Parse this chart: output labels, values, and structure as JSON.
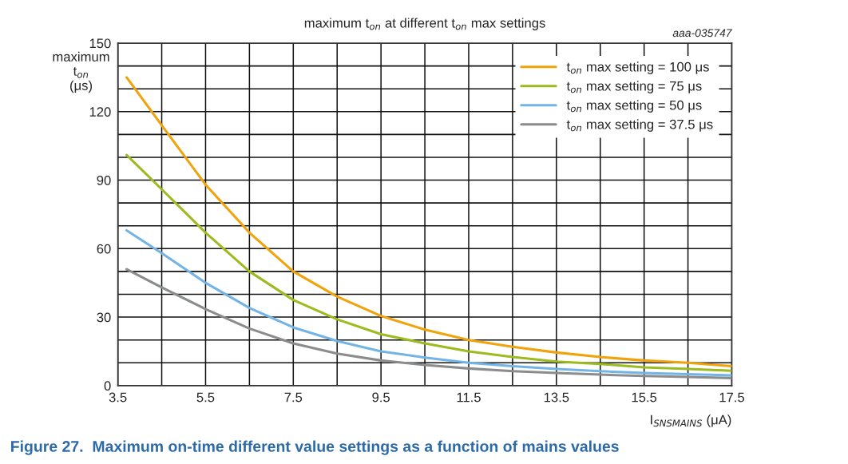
{
  "chart_data": {
    "type": "line",
    "title": "maximum t$_{on}$ at different t$_{on}$ max settings",
    "xlabel": "I$_{SNSMAINS}$ (μA)",
    "ylabel": "maximum\nt$_{on}$\n(μs)",
    "annotations": [
      "aaa-035747",
      "Figure 27.  Maximum on-time different value settings as a function of mains values"
    ],
    "x": [
      3.7,
      4.5,
      5.5,
      6.5,
      7.5,
      8.5,
      9.5,
      10.5,
      11.5,
      12.5,
      13.5,
      14.5,
      15.5,
      16.5,
      17.5
    ],
    "series": [
      {
        "name": "t$_{on}$ max setting = 100 μs",
        "color": "#f0a30a",
        "values": [
          135,
          114,
          88,
          67,
          50,
          39,
          30.5,
          24.5,
          20,
          17,
          14.5,
          12.5,
          11,
          10,
          8.5
        ]
      },
      {
        "name": "t$_{on}$ max setting = 75 μs",
        "color": "#9bbb1e",
        "values": [
          101,
          86,
          67,
          50,
          37.5,
          29,
          22.5,
          18.5,
          15,
          12.5,
          10.5,
          9.5,
          8,
          7.3,
          6.5
        ]
      },
      {
        "name": "t$_{on}$ max setting = 50 μs",
        "color": "#73b4e6",
        "values": [
          68,
          58,
          45,
          34,
          25.5,
          19.5,
          15,
          12.3,
          10,
          8.5,
          7.3,
          6.3,
          5.5,
          5,
          4.5
        ]
      },
      {
        "name": "t$_{on}$ max setting = 37.5 μs",
        "color": "#8a8c8e",
        "values": [
          51,
          43,
          33.5,
          25,
          18.5,
          14,
          11,
          9,
          7.5,
          6.3,
          5.5,
          4.8,
          4.2,
          3.8,
          3.3
        ]
      }
    ],
    "xlim": [
      3.5,
      17.5
    ],
    "xticks": [
      3.5,
      {
        "value": 4.5,
        "label": null
      },
      5.5,
      {
        "value": 6.5,
        "label": null
      },
      7.5,
      {
        "value": 8.5,
        "label": null
      },
      9.5,
      {
        "value": 10.5,
        "label": null
      },
      11.5,
      {
        "value": 12.5,
        "label": null
      },
      13.5,
      {
        "value": 14.5,
        "label": null
      },
      15.5,
      {
        "value": 16.5,
        "label": null
      },
      17.5
    ],
    "ylim": [
      0,
      150
    ],
    "yticks": [
      0,
      {
        "value": 10,
        "label": null
      },
      {
        "value": 20,
        "label": null
      },
      30,
      {
        "value": 40,
        "label": null
      },
      {
        "value": 50,
        "label": null
      },
      60,
      {
        "value": 70,
        "label": null
      },
      {
        "value": 80,
        "label": null
      },
      90,
      {
        "value": 100,
        "label": null
      },
      {
        "value": 110,
        "label": null
      },
      120,
      {
        "value": 130,
        "label": null
      },
      {
        "value": 140,
        "label": null
      },
      150
    ],
    "grid": true,
    "legend": "top right",
    "line_style": "solid",
    "marker": "none"
  }
}
